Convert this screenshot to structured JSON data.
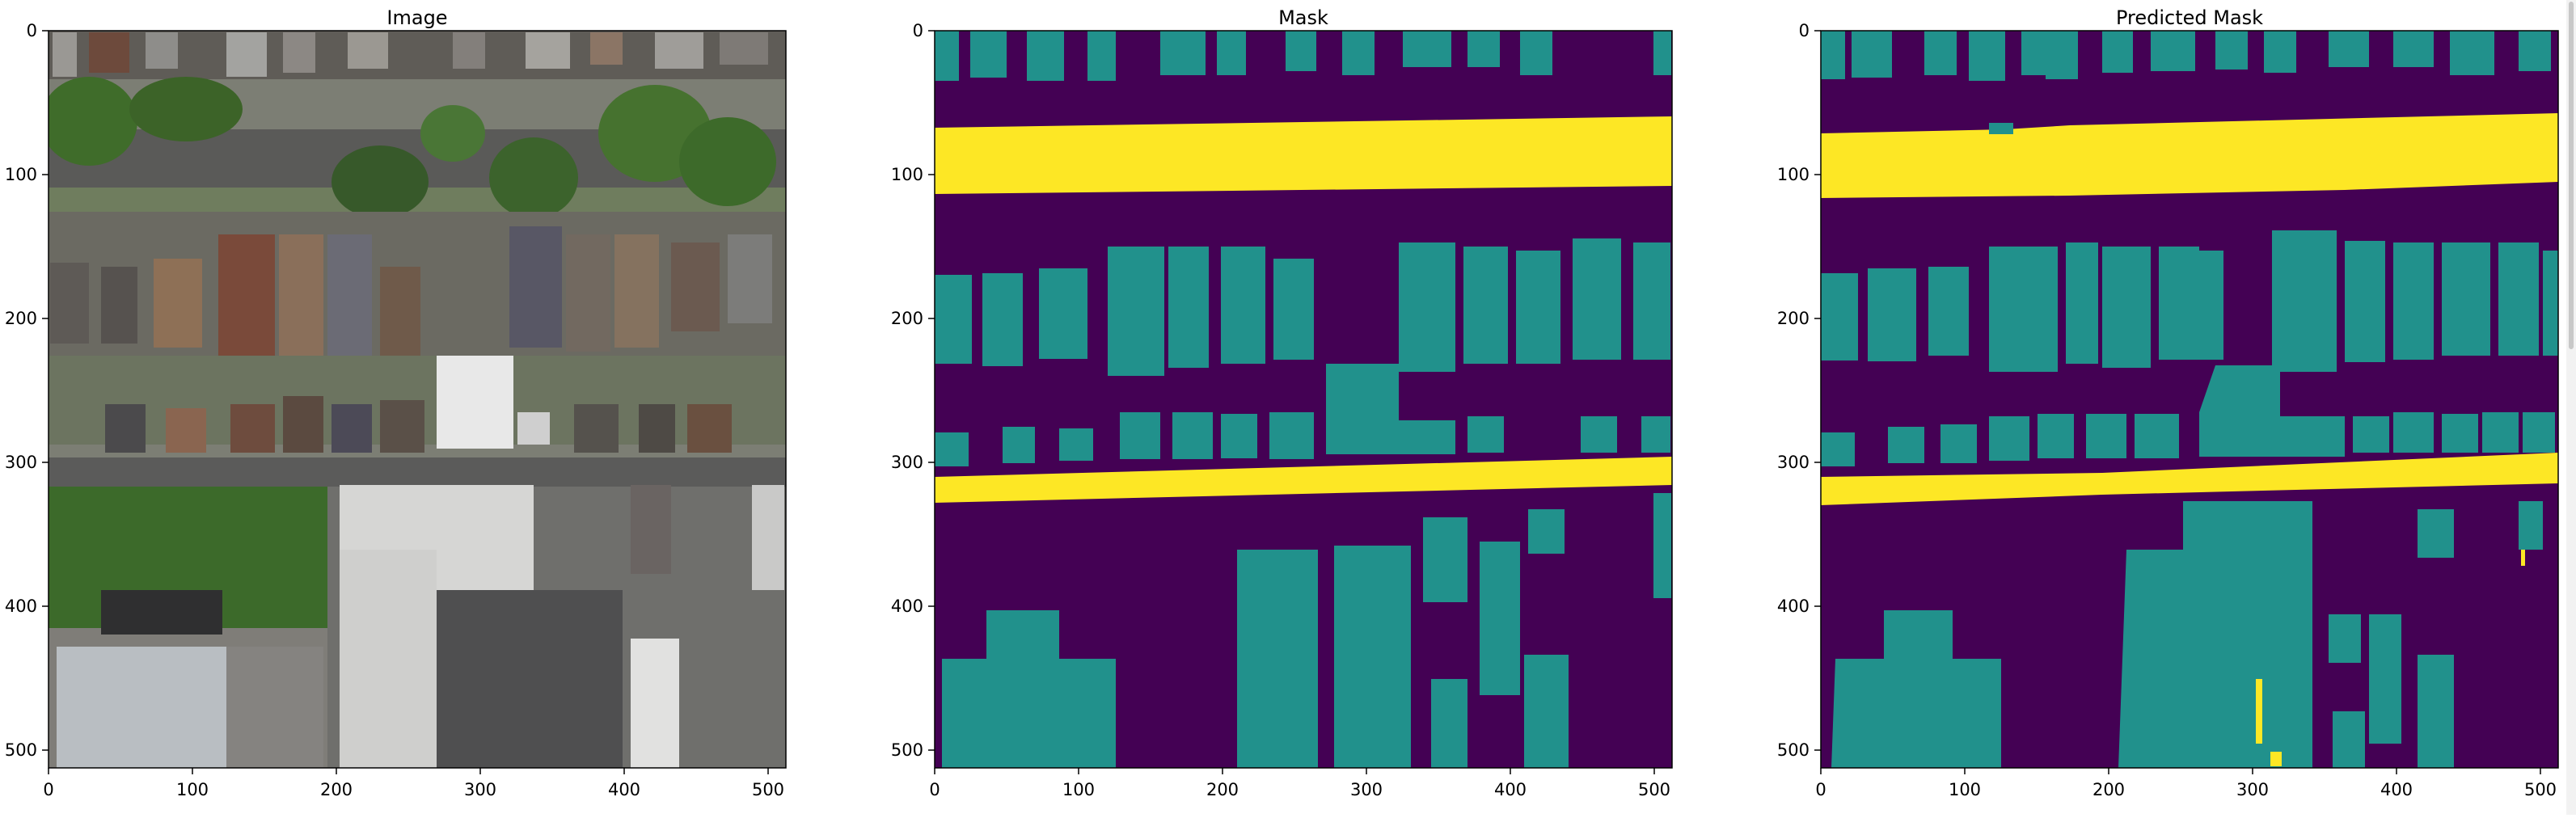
{
  "figure": {
    "panels": [
      {
        "title": "Image",
        "kind": "aerial-photo",
        "xticks": [
          "0",
          "100",
          "200",
          "300",
          "400",
          "500"
        ],
        "yticks": [
          "0",
          "100",
          "200",
          "300",
          "400",
          "500"
        ]
      },
      {
        "title": "Mask",
        "kind": "segmentation-mask",
        "xticks": [
          "0",
          "100",
          "200",
          "300",
          "400",
          "500"
        ],
        "yticks": [
          "0",
          "100",
          "200",
          "300",
          "400",
          "500"
        ]
      },
      {
        "title": "Predicted Mask",
        "kind": "predicted-segmentation-mask",
        "xticks": [
          "0",
          "100",
          "200",
          "300",
          "400",
          "500"
        ],
        "yticks": [
          "0",
          "100",
          "200",
          "300",
          "400",
          "500"
        ]
      }
    ],
    "axis_range": {
      "x": [
        0,
        512
      ],
      "y": [
        0,
        512
      ]
    },
    "colormap": {
      "background": "#440154",
      "building": "#21918c",
      "road": "#fde725"
    }
  }
}
